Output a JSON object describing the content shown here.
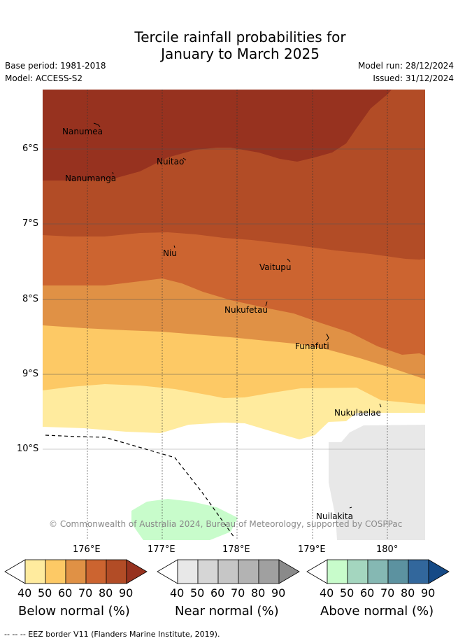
{
  "header": {
    "title_line1": "Tercile rainfall probabilities for",
    "title_line2": "January to March 2025",
    "base_period": "Base period: 1981-2018",
    "model": "Model: ACCESS-S2",
    "model_run": "Model run: 28/12/2024",
    "issued": "Issued: 31/12/2024"
  },
  "map": {
    "lat_labels": [
      "6°S",
      "7°S",
      "8°S",
      "9°S",
      "10°S"
    ],
    "lon_labels": [
      "176°E",
      "177°E",
      "178°E",
      "179°E",
      "180°"
    ],
    "places": [
      "Nanumea",
      "Nanumanga",
      "Nuitao",
      "Niu",
      "Vaitupu",
      "Nukufetau",
      "Funafuti",
      "Nukulaelae",
      "Nuilakita"
    ],
    "copyright": "© Commonwealth of Australia 2024, Bureau of Meteorology, supported by COSPPac",
    "eez_legend": "-- -- -- EEZ border V11 (Flanders Marine Institute, 2019).",
    "colors": {
      "below": [
        "#ffeb9e",
        "#fdc965",
        "#e09145",
        "#cc6430",
        "#b24c26",
        "#97321f"
      ],
      "near": [
        "#e8e8e8",
        "#d6d6d6",
        "#c6c6c6",
        "#b3b3b3",
        "#a0a0a0",
        "#8a8a8a"
      ],
      "above": [
        "#c8fccb",
        "#a4d6bf",
        "#85b8b3",
        "#5c92a0",
        "#32679c",
        "#154a86"
      ]
    }
  },
  "colorbars": {
    "ticks": [
      "40",
      "50",
      "60",
      "70",
      "80",
      "90"
    ],
    "below_label": "Below normal (%)",
    "near_label": "Near normal (%)",
    "above_label": "Above normal (%)"
  }
}
